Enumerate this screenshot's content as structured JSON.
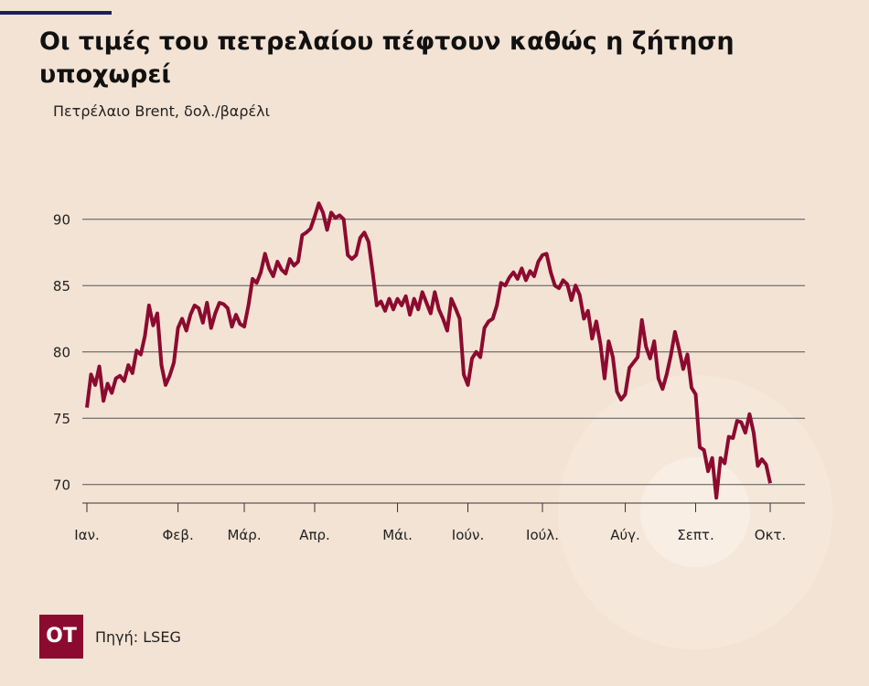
{
  "chart_data": {
    "type": "line",
    "title": "Οι τιμές του πετρελαίου πέφτουν καθώς η ζήτηση υποχωρεί",
    "subtitle": "Πετρέλαιο Brent, δολ./βαρέλι",
    "source": "Πηγή: LSEG",
    "logo": "OT",
    "categories": [
      "Ιαν.",
      null,
      null,
      null,
      null,
      null,
      null,
      null,
      null,
      null,
      null,
      null,
      null,
      null,
      null,
      null,
      null,
      null,
      null,
      null,
      null,
      null,
      "Φεβ.",
      null,
      null,
      null,
      null,
      null,
      null,
      null,
      null,
      null,
      null,
      null,
      null,
      null,
      null,
      null,
      "Μάρ.",
      null,
      null,
      null,
      null,
      null,
      null,
      null,
      null,
      null,
      null,
      null,
      null,
      null,
      null,
      null,
      null,
      "Απρ.",
      null,
      null,
      null,
      null,
      null,
      null,
      null,
      null,
      null,
      null,
      null,
      null,
      null,
      null,
      null,
      null,
      null,
      null,
      null,
      "Μάι.",
      null,
      null,
      null,
      null,
      null,
      null,
      null,
      null,
      null,
      null,
      null,
      null,
      null,
      null,
      null,
      null,
      "Ιούν.",
      null,
      null,
      null,
      null,
      null,
      null,
      null,
      null,
      null,
      null,
      null,
      null,
      null,
      null,
      null,
      null,
      null,
      "Ιούλ.",
      null,
      null,
      null,
      null,
      null,
      null,
      null,
      null,
      null,
      null,
      null,
      null,
      null,
      null,
      null,
      null,
      null,
      null,
      null,
      "Αύγ.",
      null,
      null,
      null,
      null,
      null,
      null,
      null,
      null,
      null,
      null,
      null,
      null,
      null,
      null,
      null,
      null,
      "Σεπτ.",
      null,
      null,
      null,
      null,
      null,
      null,
      null,
      null,
      null,
      null,
      null,
      null,
      null,
      null,
      null,
      null,
      null,
      "Οκτ."
    ],
    "series": [
      {
        "color": "#8c0a30",
        "values": [
          75.8,
          78.3,
          77.5,
          78.9,
          76.3,
          77.6,
          76.9,
          78.0,
          78.2,
          77.8,
          79.0,
          78.4,
          80.1,
          79.8,
          81.2,
          83.5,
          82.0,
          82.9,
          79.0,
          77.5,
          78.2,
          79.2,
          81.8,
          82.5,
          81.6,
          82.8,
          83.5,
          83.3,
          82.2,
          83.7,
          81.8,
          82.9,
          83.7,
          83.6,
          83.3,
          81.9,
          82.8,
          82.1,
          81.9,
          83.5,
          85.5,
          85.2,
          86.0,
          87.4,
          86.3,
          85.7,
          86.8,
          86.2,
          85.9,
          87.0,
          86.5,
          86.8,
          88.8,
          89.0,
          89.3,
          90.2,
          91.2,
          90.5,
          89.2,
          90.5,
          90.1,
          90.3,
          90.0,
          87.3,
          87.0,
          87.3,
          88.6,
          89.0,
          88.3,
          86.0,
          83.5,
          83.8,
          83.1,
          84.0,
          83.2,
          84.0,
          83.5,
          84.2,
          82.8,
          84.0,
          83.2,
          84.5,
          83.7,
          82.9,
          84.5,
          83.2,
          82.5,
          81.6,
          84.0,
          83.3,
          82.5,
          78.3,
          77.5,
          79.5,
          80.0,
          79.6,
          81.8,
          82.3,
          82.5,
          83.5,
          85.2,
          85.0,
          85.6,
          86.0,
          85.5,
          86.3,
          85.4,
          86.1,
          85.7,
          86.8,
          87.3,
          87.4,
          86.0,
          85.0,
          84.8,
          85.4,
          85.1,
          83.9,
          85.0,
          84.3,
          82.5,
          83.1,
          81.0,
          82.3,
          80.6,
          78.0,
          80.8,
          79.6,
          77.0,
          76.4,
          76.8,
          78.8,
          79.2,
          79.6,
          82.4,
          80.4,
          79.5,
          80.8,
          78.0,
          77.2,
          78.3,
          79.7,
          81.5,
          80.2,
          78.7,
          79.8,
          77.3,
          76.8,
          72.8,
          72.6,
          71.0,
          72.0,
          69.0,
          72.0,
          71.6,
          73.6,
          73.5,
          74.8,
          74.7,
          73.9,
          75.3,
          73.9,
          71.4,
          71.9,
          71.5,
          70.1
        ]
      }
    ],
    "ylim": [
      68.6,
      92
    ],
    "yticks": [
      70,
      75,
      80,
      85,
      90
    ],
    "grid": true
  }
}
